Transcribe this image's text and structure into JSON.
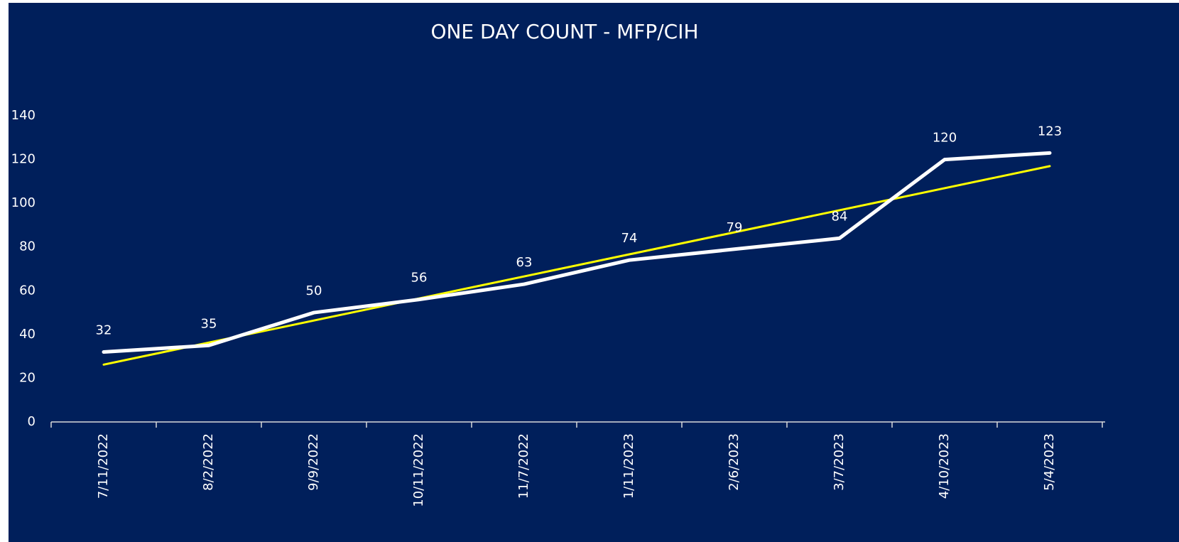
{
  "chart_data": {
    "type": "line",
    "title": "ONE DAY COUNT - MFP/CIH",
    "categories": [
      "7/11/2022",
      "8/2/2022",
      "9/9/2022",
      "10/11/2022",
      "11/7/2022",
      "1/11/2023",
      "2/6/2023",
      "3/7/2023",
      "4/10/2023",
      "5/4/2023"
    ],
    "values": [
      32,
      35,
      50,
      56,
      63,
      74,
      79,
      84,
      120,
      123
    ],
    "color": "#ffffff",
    "data_labels": true,
    "trendline": "linear",
    "trendline_color": "#ffff00",
    "ylim": [
      0,
      140
    ],
    "yticks": [
      0,
      20,
      40,
      60,
      80,
      100,
      120,
      140
    ],
    "grid": false
  }
}
